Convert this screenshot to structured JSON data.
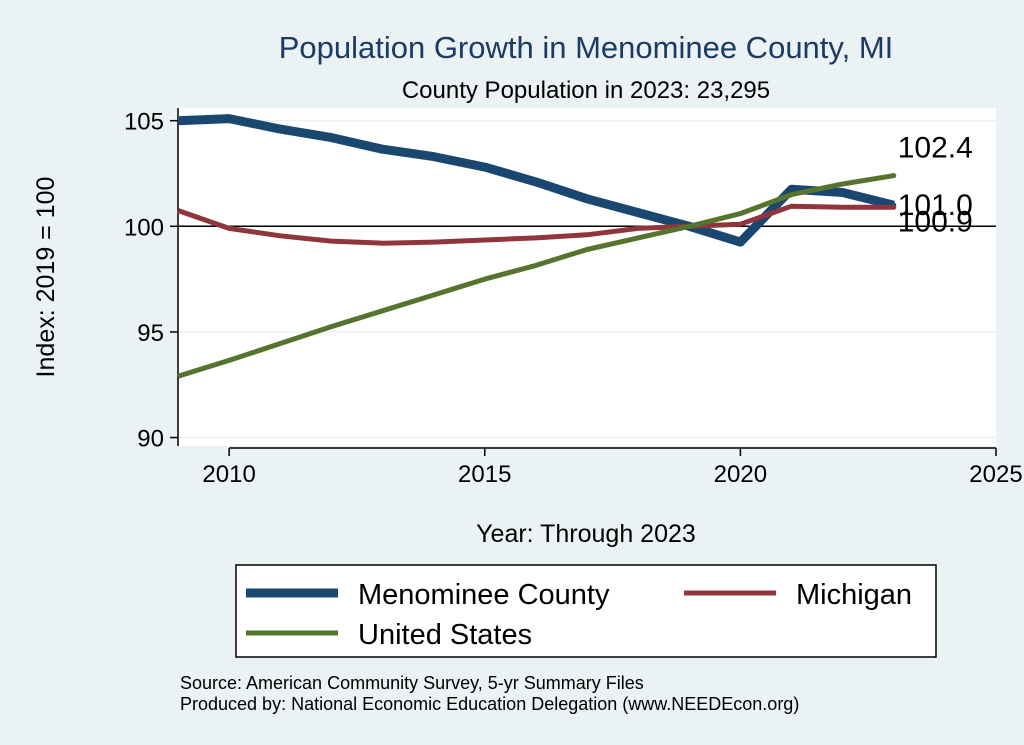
{
  "chart_data": {
    "type": "line",
    "title": "Population Growth in Menominee County, MI",
    "subtitle": "County Population in 2023: 23,295",
    "xlabel": "Year: Through 2023",
    "ylabel": "Index: 2019 = 100",
    "xlim": [
      2009,
      2025
    ],
    "ylim": [
      89.6,
      105.6
    ],
    "xticks": [
      2010,
      2015,
      2020,
      2025
    ],
    "yticks": [
      90,
      95,
      100,
      105
    ],
    "reference_line": 100,
    "series": [
      {
        "name": "Menominee  County",
        "color": "#1a476f",
        "x": [
          2009,
          2010,
          2011,
          2012,
          2013,
          2014,
          2015,
          2016,
          2017,
          2018,
          2019,
          2020,
          2021,
          2022,
          2023
        ],
        "values": [
          105.0,
          105.1,
          104.6,
          104.2,
          103.65,
          103.3,
          102.8,
          102.1,
          101.3,
          100.65,
          100.0,
          99.25,
          101.75,
          101.6,
          101.0
        ],
        "end_label": "101.0"
      },
      {
        "name": "Michigan",
        "color": "#90353b",
        "x": [
          2009,
          2010,
          2011,
          2012,
          2013,
          2014,
          2015,
          2016,
          2017,
          2018,
          2019,
          2020,
          2021,
          2022,
          2023
        ],
        "values": [
          100.75,
          99.9,
          99.55,
          99.3,
          99.2,
          99.25,
          99.35,
          99.45,
          99.6,
          99.9,
          100.0,
          100.1,
          100.95,
          100.9,
          100.9
        ],
        "end_label": "100.9"
      },
      {
        "name": "United States",
        "color": "#55752f",
        "x": [
          2009,
          2010,
          2011,
          2012,
          2013,
          2014,
          2015,
          2016,
          2017,
          2018,
          2019,
          2020,
          2021,
          2022,
          2023
        ],
        "values": [
          92.9,
          93.65,
          94.45,
          95.25,
          96.0,
          96.75,
          97.5,
          98.15,
          98.9,
          99.45,
          100.0,
          100.6,
          101.5,
          102.0,
          102.4
        ],
        "end_label": "102.4"
      }
    ],
    "legend": {
      "placement": "bottom",
      "entries": [
        "Menominee  County",
        "Michigan",
        "United States"
      ]
    }
  },
  "footer": {
    "source": "Source: American Community Survey, 5-yr Summary Files",
    "produced_by": "Produced by: National Economic Education Delegation (www.NEEDEcon.org)"
  }
}
